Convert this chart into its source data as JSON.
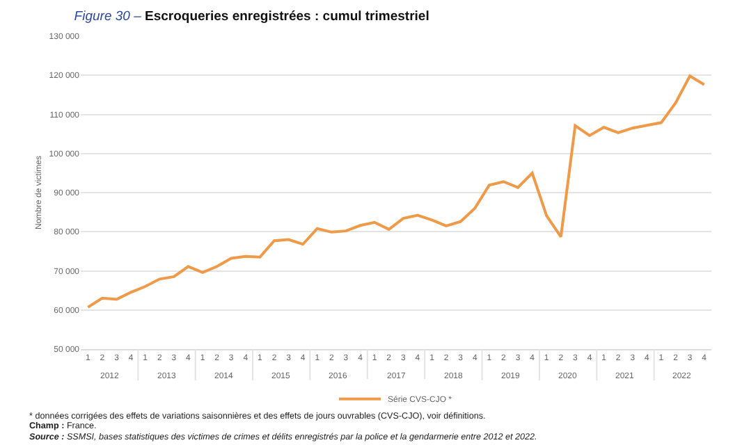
{
  "chart_data": {
    "type": "line",
    "title": "Figure 30 – Escroqueries enregistrées : cumul trimestriel",
    "ylabel": "Nombre de victimes",
    "categories": [
      "1",
      "2",
      "3",
      "4",
      "1",
      "2",
      "3",
      "4",
      "1",
      "2",
      "3",
      "4",
      "1",
      "2",
      "3",
      "4",
      "1",
      "2",
      "3",
      "4",
      "1",
      "2",
      "3",
      "4",
      "1",
      "2",
      "3",
      "4",
      "1",
      "2",
      "3",
      "4",
      "1",
      "2",
      "3",
      "4",
      "1",
      "2",
      "3",
      "4",
      "1",
      "2",
      "3",
      "4"
    ],
    "series": [
      {
        "name": "Série CVS-CJO *",
        "color": "#ee9a48",
        "values": [
          60700,
          63000,
          62700,
          64500,
          66000,
          67900,
          68500,
          71100,
          69600,
          71100,
          73200,
          73700,
          73500,
          77700,
          78000,
          76800,
          80800,
          79900,
          80200,
          81600,
          82400,
          80600,
          83400,
          84200,
          83000,
          81500,
          82600,
          86000,
          91900,
          92800,
          91300,
          95000,
          84100,
          78700,
          107100,
          104600,
          106700,
          105300,
          106500,
          107200,
          107900,
          112900,
          119800,
          117600
        ]
      }
    ],
    "ylim": [
      50000,
      130000
    ],
    "yticks": [
      {
        "value": 50000,
        "label": "50 000"
      },
      {
        "value": 60000,
        "label": "60 000"
      },
      {
        "value": 70000,
        "label": "70 000"
      },
      {
        "value": 80000,
        "label": "80 000"
      },
      {
        "value": 90000,
        "label": "90 000"
      },
      {
        "value": 100000,
        "label": "100 000"
      },
      {
        "value": 110000,
        "label": "110 000"
      },
      {
        "value": 120000,
        "label": "120 000"
      },
      {
        "value": 130000,
        "label": "130 000"
      }
    ],
    "grid": "y",
    "legend": "bottom",
    "marker": "none",
    "line_style": "solid",
    "annotations": [
      "2012",
      "2013",
      "2014",
      "2015",
      "2016",
      "2017",
      "2018",
      "2019",
      "2020",
      "2021",
      "2022",
      "* données corrigées des effets de variations saisonnières et des effets de jours ouvrables (CVS-CJO), voir définitions.",
      "Champ : France.",
      "Source : SSMSI, bases statistiques des victimes de crimes et délits enregistrés par la police et la gendarmerie entre 2012 et 2022."
    ]
  }
}
